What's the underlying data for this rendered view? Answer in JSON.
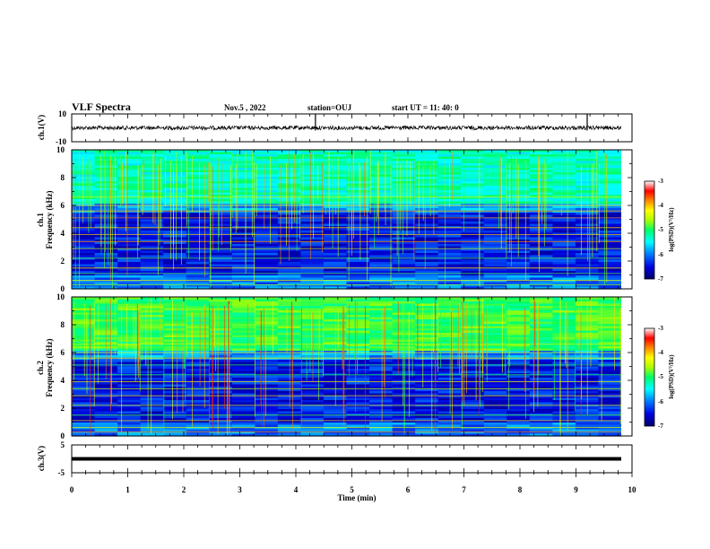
{
  "header": {
    "title": "VLF Spectra",
    "date": "Nov.5 , 2022",
    "station": "station=OUJ",
    "start": "start UT = 11: 40: 0"
  },
  "chart_data": [
    {
      "type": "line",
      "panel": "ch1-voltage",
      "ylabel": "ch.1(V)",
      "ylim": [
        -10,
        10
      ],
      "yticks": [
        -10,
        10
      ],
      "xlim": [
        0,
        10
      ],
      "baseline": 0,
      "spikes": [
        4.35,
        9.2
      ]
    },
    {
      "type": "heatmap",
      "panel": "ch1-spectrogram",
      "ylabel": "Frequency (kHz)",
      "ylabel2": "ch.1",
      "ylim": [
        0,
        10
      ],
      "yticks": [
        "0",
        "2",
        "4",
        "6",
        "8",
        "10"
      ],
      "xlim": [
        0,
        10
      ],
      "colorbar": {
        "label": "log(PSD)(V²/Hz)",
        "range": [
          -7,
          -3
        ],
        "ticks": [
          "-3",
          "-4",
          "-5",
          "-6",
          "-7"
        ]
      }
    },
    {
      "type": "heatmap",
      "panel": "ch2-spectrogram",
      "ylabel": "Frequency (kHz)",
      "ylabel2": "ch.2",
      "ylim": [
        0,
        10
      ],
      "yticks": [
        "0",
        "2",
        "4",
        "6",
        "8",
        "10"
      ],
      "xlim": [
        0,
        10
      ],
      "colorbar": {
        "label": "log(PSD)(V²/Hz)",
        "range": [
          -7,
          -3
        ],
        "ticks": [
          "-3",
          "-4",
          "-5",
          "-6",
          "-7"
        ]
      }
    },
    {
      "type": "line",
      "panel": "ch3-voltage",
      "ylabel": "ch.3(V)",
      "ylim": [
        -5,
        5
      ],
      "yticks": [
        -5,
        5
      ],
      "xlim": [
        0,
        10
      ],
      "baseline": 0
    }
  ],
  "xaxis": {
    "label": "Time (min)",
    "ticks": [
      "0",
      "1",
      "2",
      "3",
      "4",
      "5",
      "6",
      "7",
      "8",
      "9",
      "10"
    ]
  },
  "colors": {
    "colormap": [
      "#000066",
      "#0000dd",
      "#0077ff",
      "#00ffff",
      "#00ff66",
      "#aaff00",
      "#ffff00",
      "#ff8800",
      "#ff0000",
      "#ffffff"
    ]
  }
}
